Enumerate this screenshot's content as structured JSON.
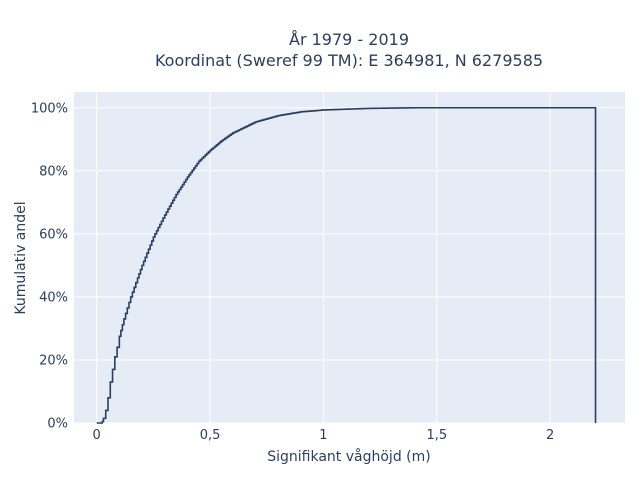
{
  "chart_data": {
    "type": "line",
    "subtype": "ecdf-step",
    "title_line1": "År 1979 - 2019",
    "title_line2": "Koordinat (Sweref 99 TM): E 364981, N 6279585",
    "xlabel": "Signifikant våghöjd (m)",
    "ylabel": "Kumulativ andel",
    "xlim": [
      -0.1,
      2.33
    ],
    "ylim": [
      0,
      1.05
    ],
    "x_ticks": [
      {
        "value": 0,
        "label": "0"
      },
      {
        "value": 0.5,
        "label": "0,5"
      },
      {
        "value": 1,
        "label": "1"
      },
      {
        "value": 1.5,
        "label": "1,5"
      },
      {
        "value": 2,
        "label": "2"
      }
    ],
    "y_ticks": [
      {
        "value": 0,
        "label": "0%"
      },
      {
        "value": 0.2,
        "label": "20%"
      },
      {
        "value": 0.4,
        "label": "40%"
      },
      {
        "value": 0.6,
        "label": "60%"
      },
      {
        "value": 0.8,
        "label": "80%"
      },
      {
        "value": 1,
        "label": "100%"
      }
    ],
    "grid": true,
    "line_color": "#2a3f5f",
    "background_color": "#e5ecf6",
    "series": [
      {
        "points": [
          [
            0.0,
            0.0
          ],
          [
            0.02,
            0.0
          ],
          [
            0.025,
            0.005
          ],
          [
            0.03,
            0.015
          ],
          [
            0.04,
            0.04
          ],
          [
            0.05,
            0.08
          ],
          [
            0.06,
            0.13
          ],
          [
            0.07,
            0.17
          ],
          [
            0.08,
            0.21
          ],
          [
            0.09,
            0.24
          ],
          [
            0.1,
            0.275
          ],
          [
            0.12,
            0.33
          ],
          [
            0.15,
            0.4
          ],
          [
            0.18,
            0.46
          ],
          [
            0.2,
            0.5
          ],
          [
            0.25,
            0.59
          ],
          [
            0.3,
            0.66
          ],
          [
            0.35,
            0.725
          ],
          [
            0.4,
            0.78
          ],
          [
            0.45,
            0.83
          ],
          [
            0.5,
            0.865
          ],
          [
            0.55,
            0.895
          ],
          [
            0.6,
            0.92
          ],
          [
            0.7,
            0.955
          ],
          [
            0.8,
            0.975
          ],
          [
            0.9,
            0.987
          ],
          [
            1.0,
            0.993
          ],
          [
            1.2,
            0.998
          ],
          [
            1.4,
            1.0
          ],
          [
            2.2,
            1.0
          ],
          [
            2.2,
            0.0
          ]
        ]
      }
    ]
  }
}
